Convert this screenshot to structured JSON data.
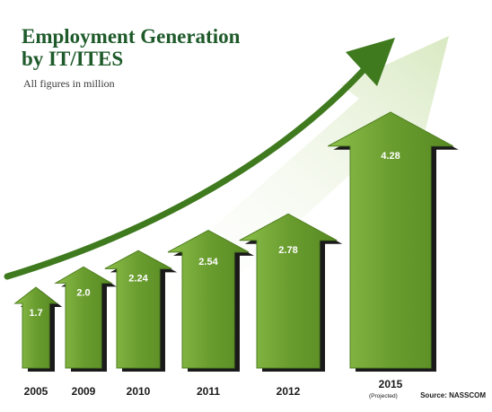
{
  "header": {
    "title_line1": "Employment Generation",
    "title_line2": "by IT/ITES",
    "subtitle": "All figures in million"
  },
  "source": {
    "projected_note": "(Projected)",
    "text": "Source: NASSCOM"
  },
  "colors": {
    "arrow_fill": "#6a9d2f",
    "arrow_fill_light": "#8cbf4a",
    "arrow_shadow": "#1a1a1a",
    "trend_arrow": "#3f7a1e",
    "background_glow": "#dfeccb",
    "title": "#1e5a2a"
  },
  "chart_data": {
    "type": "bar",
    "title": "Employment Generation by IT/ITES",
    "subtitle": "All figures in million",
    "categories": [
      "2005",
      "2009",
      "2010",
      "2011",
      "2012",
      "2015"
    ],
    "values": [
      1.7,
      2.0,
      2.24,
      2.54,
      2.78,
      4.28
    ],
    "value_labels": [
      "1.7",
      "2.0",
      "2.24",
      "2.54",
      "2.78",
      "4.28"
    ],
    "projected": [
      false,
      false,
      false,
      false,
      false,
      true
    ],
    "xlabel": "",
    "ylabel": "",
    "ylim": [
      0,
      4.6
    ],
    "grid": false,
    "legend": "none"
  }
}
